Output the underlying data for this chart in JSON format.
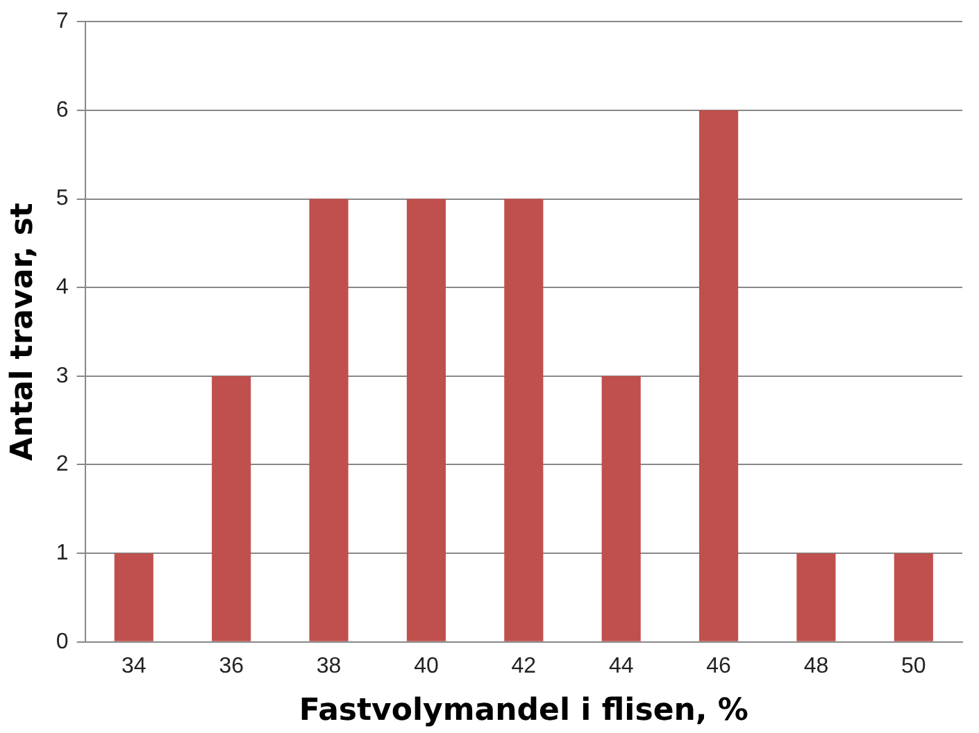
{
  "chart_data": {
    "type": "bar",
    "xlabel": "Fastvolymandel i flisen, %",
    "ylabel": "Antal travar, st",
    "categories": [
      "34",
      "36",
      "38",
      "40",
      "42",
      "44",
      "46",
      "48",
      "50"
    ],
    "values": [
      1,
      3,
      5,
      5,
      5,
      3,
      6,
      1,
      1
    ],
    "color": "#c0504d",
    "ylim": [
      0,
      7
    ],
    "yticks": [
      0,
      1,
      2,
      3,
      4,
      5,
      6,
      7
    ],
    "grid": "y"
  }
}
